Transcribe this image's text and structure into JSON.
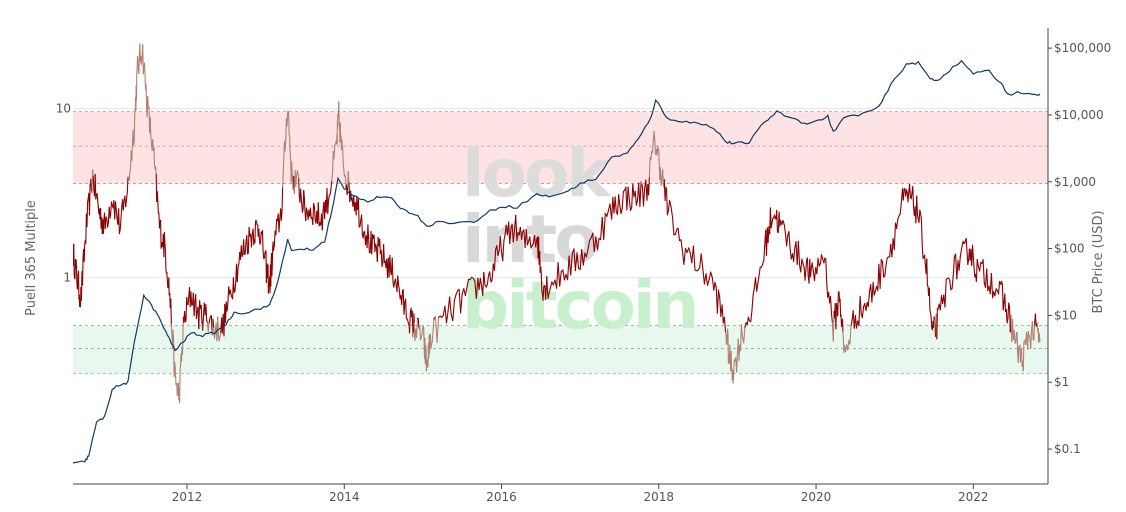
{
  "chart_data": {
    "type": "line",
    "title": "",
    "watermark": {
      "lines": [
        "look",
        "into",
        "bitcoin"
      ],
      "colors": [
        "#dcdcdc",
        "#d8d8d8",
        "#c8f0cc"
      ]
    },
    "x_axis": {
      "ticks": [
        "2012",
        "2014",
        "2016",
        "2018",
        "2020",
        "2022"
      ],
      "range": [
        2010.55,
        2022.95
      ]
    },
    "y_left": {
      "label": "Puell 365 Multiple",
      "scale": "log",
      "ticks": [
        "10",
        "1"
      ],
      "range": [
        0.06,
        30
      ]
    },
    "y_right": {
      "label": "BTC Price (USD)",
      "scale": "log",
      "ticks": [
        "$100,000",
        "$10,000",
        "$1,000",
        "$100",
        "$10",
        "$1",
        "$0.1"
      ],
      "range": [
        0.03,
        200000
      ]
    },
    "bands": [
      {
        "zone": "high",
        "from": 3.6,
        "to": 9.6,
        "color": "#fde3e3",
        "midline": 6
      },
      {
        "zone": "low",
        "from": 0.27,
        "to": 0.52,
        "color": "#e8f8ee",
        "midline": 0.38
      }
    ],
    "series": [
      {
        "axis": "left",
        "color": "#8b0000",
        "faded_color": "#b08070",
        "points": [
          [
            2010.55,
            1.4
          ],
          [
            2010.6,
            1.0
          ],
          [
            2010.65,
            0.75
          ],
          [
            2010.72,
            2.0
          ],
          [
            2010.8,
            4.0
          ],
          [
            2010.88,
            2.5
          ],
          [
            2010.95,
            2.0
          ],
          [
            2011.05,
            3.0
          ],
          [
            2011.15,
            2.0
          ],
          [
            2011.25,
            3.5
          ],
          [
            2011.33,
            8.0
          ],
          [
            2011.37,
            17
          ],
          [
            2011.43,
            23
          ],
          [
            2011.5,
            10
          ],
          [
            2011.58,
            5
          ],
          [
            2011.65,
            2.0
          ],
          [
            2011.72,
            1.5
          ],
          [
            2011.78,
            0.8
          ],
          [
            2011.85,
            0.25
          ],
          [
            2011.9,
            0.2
          ],
          [
            2011.96,
            0.55
          ],
          [
            2012.05,
            0.8
          ],
          [
            2012.15,
            0.6
          ],
          [
            2012.25,
            0.6
          ],
          [
            2012.35,
            0.5
          ],
          [
            2012.45,
            0.5
          ],
          [
            2012.55,
            0.8
          ],
          [
            2012.65,
            1.2
          ],
          [
            2012.75,
            1.6
          ],
          [
            2012.85,
            1.9
          ],
          [
            2012.92,
            2.0
          ],
          [
            2013.0,
            1.2
          ],
          [
            2013.05,
            0.9
          ],
          [
            2013.1,
            1.5
          ],
          [
            2013.2,
            2.5
          ],
          [
            2013.28,
            11
          ],
          [
            2013.33,
            4
          ],
          [
            2013.42,
            3.5
          ],
          [
            2013.5,
            2.5
          ],
          [
            2013.6,
            2.5
          ],
          [
            2013.7,
            2.2
          ],
          [
            2013.8,
            3
          ],
          [
            2013.9,
            6
          ],
          [
            2013.93,
            9
          ],
          [
            2013.98,
            5
          ],
          [
            2014.05,
            3.5
          ],
          [
            2014.15,
            2.8
          ],
          [
            2014.25,
            2.0
          ],
          [
            2014.35,
            1.5
          ],
          [
            2014.45,
            1.4
          ],
          [
            2014.55,
            1.2
          ],
          [
            2014.65,
            1.0
          ],
          [
            2014.75,
            0.7
          ],
          [
            2014.85,
            0.55
          ],
          [
            2014.9,
            0.5
          ],
          [
            2015.0,
            0.45
          ],
          [
            2015.05,
            0.3
          ],
          [
            2015.1,
            0.45
          ],
          [
            2015.3,
            0.6
          ],
          [
            2015.5,
            0.75
          ],
          [
            2015.7,
            0.9
          ],
          [
            2015.85,
            1.0
          ],
          [
            2016.0,
            1.5
          ],
          [
            2016.15,
            2.0
          ],
          [
            2016.3,
            1.6
          ],
          [
            2016.45,
            1.8
          ],
          [
            2016.52,
            0.9
          ],
          [
            2016.6,
            0.9
          ],
          [
            2016.8,
            1.1
          ],
          [
            2017.0,
            1.3
          ],
          [
            2017.2,
            1.7
          ],
          [
            2017.4,
            2.5
          ],
          [
            2017.55,
            3.0
          ],
          [
            2017.7,
            3.0
          ],
          [
            2017.85,
            3.3
          ],
          [
            2017.95,
            6.5
          ],
          [
            2018.02,
            4.5
          ],
          [
            2018.12,
            2.5
          ],
          [
            2018.3,
            1.5
          ],
          [
            2018.5,
            1.2
          ],
          [
            2018.7,
            0.9
          ],
          [
            2018.85,
            0.5
          ],
          [
            2018.9,
            0.33
          ],
          [
            2018.95,
            0.28
          ],
          [
            2019.05,
            0.45
          ],
          [
            2019.2,
            0.7
          ],
          [
            2019.35,
            1.5
          ],
          [
            2019.45,
            2.5
          ],
          [
            2019.55,
            2.0
          ],
          [
            2019.7,
            1.5
          ],
          [
            2019.85,
            1.2
          ],
          [
            2019.95,
            1.0
          ],
          [
            2020.1,
            1.4
          ],
          [
            2020.22,
            0.5
          ],
          [
            2020.3,
            0.8
          ],
          [
            2020.36,
            0.35
          ],
          [
            2020.5,
            0.6
          ],
          [
            2020.65,
            0.7
          ],
          [
            2020.8,
            1.0
          ],
          [
            2020.95,
            1.5
          ],
          [
            2021.1,
            2.8
          ],
          [
            2021.2,
            3.0
          ],
          [
            2021.3,
            2.4
          ],
          [
            2021.4,
            1.2
          ],
          [
            2021.48,
            0.45
          ],
          [
            2021.55,
            0.55
          ],
          [
            2021.7,
            1.0
          ],
          [
            2021.85,
            1.3
          ],
          [
            2021.95,
            1.5
          ],
          [
            2022.05,
            1.1
          ],
          [
            2022.2,
            1.0
          ],
          [
            2022.35,
            0.8
          ],
          [
            2022.45,
            0.6
          ],
          [
            2022.55,
            0.4
          ],
          [
            2022.62,
            0.32
          ],
          [
            2022.7,
            0.45
          ],
          [
            2022.8,
            0.5
          ],
          [
            2022.85,
            0.42
          ]
        ]
      },
      {
        "axis": "right",
        "color": "#0f3b66",
        "points": [
          [
            2010.55,
            0.06
          ],
          [
            2010.7,
            0.065
          ],
          [
            2010.75,
            0.08
          ],
          [
            2010.85,
            0.25
          ],
          [
            2010.95,
            0.3
          ],
          [
            2011.05,
            0.8
          ],
          [
            2011.15,
            0.9
          ],
          [
            2011.25,
            1.0
          ],
          [
            2011.33,
            4
          ],
          [
            2011.45,
            20
          ],
          [
            2011.55,
            14
          ],
          [
            2011.65,
            9
          ],
          [
            2011.75,
            5
          ],
          [
            2011.85,
            3
          ],
          [
            2011.95,
            4
          ],
          [
            2012.05,
            5.5
          ],
          [
            2012.2,
            5
          ],
          [
            2012.35,
            5.5
          ],
          [
            2012.5,
            7.5
          ],
          [
            2012.6,
            11
          ],
          [
            2012.75,
            11
          ],
          [
            2012.9,
            12.5
          ],
          [
            2013.05,
            14
          ],
          [
            2013.15,
            30
          ],
          [
            2013.28,
            140
          ],
          [
            2013.33,
            90
          ],
          [
            2013.45,
            100
          ],
          [
            2013.6,
            95
          ],
          [
            2013.75,
            130
          ],
          [
            2013.85,
            400
          ],
          [
            2013.92,
            1100
          ],
          [
            2014.0,
            800
          ],
          [
            2014.1,
            650
          ],
          [
            2014.3,
            500
          ],
          [
            2014.45,
            600
          ],
          [
            2014.6,
            550
          ],
          [
            2014.75,
            380
          ],
          [
            2014.9,
            330
          ],
          [
            2015.05,
            220
          ],
          [
            2015.2,
            250
          ],
          [
            2015.45,
            245
          ],
          [
            2015.65,
            250
          ],
          [
            2015.85,
            360
          ],
          [
            2016.0,
            430
          ],
          [
            2016.2,
            420
          ],
          [
            2016.45,
            650
          ],
          [
            2016.6,
            600
          ],
          [
            2016.85,
            720
          ],
          [
            2017.0,
            950
          ],
          [
            2017.2,
            1100
          ],
          [
            2017.4,
            2300
          ],
          [
            2017.6,
            2700
          ],
          [
            2017.75,
            4500
          ],
          [
            2017.9,
            9000
          ],
          [
            2017.96,
            17000
          ],
          [
            2018.1,
            9000
          ],
          [
            2018.3,
            8000
          ],
          [
            2018.5,
            7500
          ],
          [
            2018.7,
            6500
          ],
          [
            2018.85,
            4000
          ],
          [
            2018.95,
            3700
          ],
          [
            2019.15,
            3900
          ],
          [
            2019.35,
            8000
          ],
          [
            2019.5,
            11000
          ],
          [
            2019.7,
            9000
          ],
          [
            2019.85,
            7500
          ],
          [
            2020.0,
            8000
          ],
          [
            2020.15,
            9500
          ],
          [
            2020.22,
            5500
          ],
          [
            2020.35,
            9000
          ],
          [
            2020.6,
            10500
          ],
          [
            2020.8,
            13000
          ],
          [
            2020.95,
            28000
          ],
          [
            2021.15,
            58000
          ],
          [
            2021.3,
            60000
          ],
          [
            2021.45,
            35000
          ],
          [
            2021.55,
            33000
          ],
          [
            2021.7,
            47000
          ],
          [
            2021.85,
            63000
          ],
          [
            2022.0,
            42000
          ],
          [
            2022.2,
            45000
          ],
          [
            2022.35,
            30000
          ],
          [
            2022.45,
            20000
          ],
          [
            2022.6,
            22000
          ],
          [
            2022.75,
            19500
          ],
          [
            2022.85,
            20500
          ]
        ]
      }
    ]
  }
}
